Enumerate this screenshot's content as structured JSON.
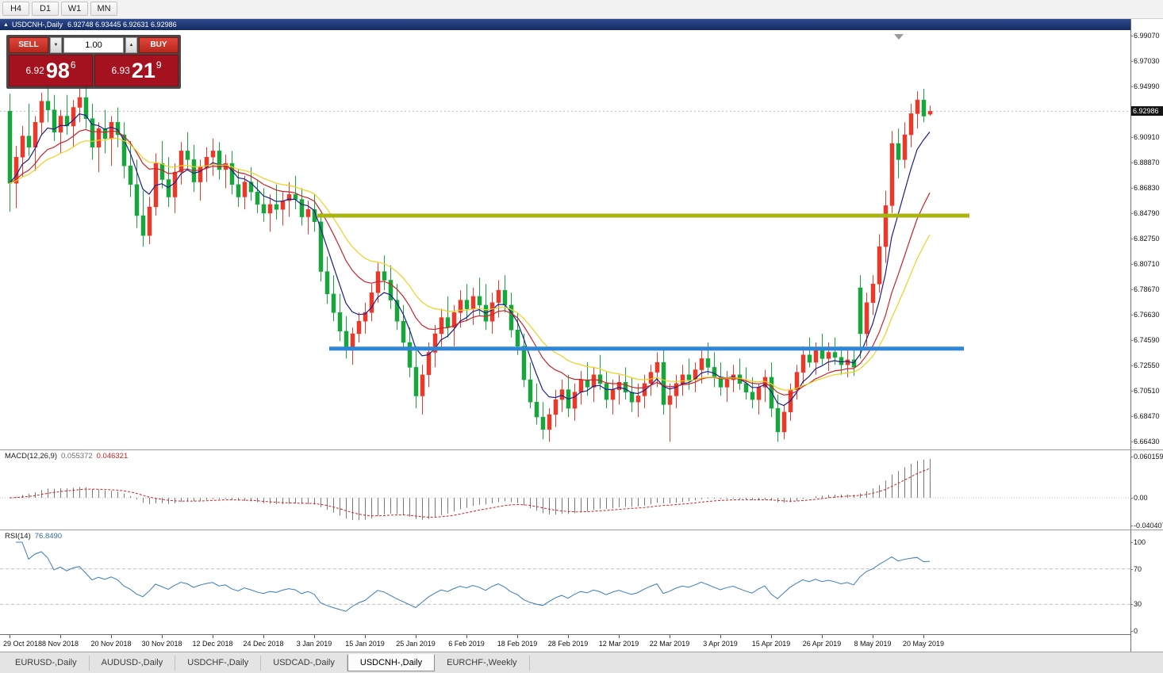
{
  "toolbar": {
    "timeframes": [
      "H4",
      "D1",
      "W1",
      "MN"
    ]
  },
  "chart_window": {
    "title": "USDCNH-,Daily",
    "ohlc_text": "6.92748 6.93445 6.92631 6.92986",
    "current_price": "6.92986",
    "trade_panel": {
      "sell_label": "SELL",
      "buy_label": "BUY",
      "volume": "1.00",
      "volume_down_icon": "▼",
      "volume_up_icon": "▲",
      "sell_price": {
        "prefix": "6.92",
        "big": "98",
        "sup": "6"
      },
      "buy_price": {
        "prefix": "6.93",
        "big": "21",
        "sup": "9"
      }
    }
  },
  "price_axis": {
    "labels": [
      "6.99070",
      "6.97030",
      "6.94990",
      "6.90910",
      "6.88870",
      "6.86830",
      "6.84790",
      "6.82750",
      "6.80710",
      "6.78670",
      "6.76630",
      "6.74590",
      "6.72550",
      "6.70510",
      "6.68470",
      "6.66430"
    ]
  },
  "macd_panel": {
    "name": "MACD(12,26,9)",
    "value": "0.055372",
    "signal_value": "0.046321",
    "axis_labels": [
      "0.060159",
      "0.00",
      "-0.040407"
    ]
  },
  "rsi_panel": {
    "name": "RSI(14)",
    "value": "76.8490",
    "axis_labels": [
      "100",
      "70",
      "30",
      "0"
    ]
  },
  "date_axis": {
    "labels": [
      "29 Oct 2018",
      "8 Nov 2018",
      "20 Nov 2018",
      "30 Nov 2018",
      "12 Dec 2018",
      "24 Dec 2018",
      "3 Jan 2019",
      "15 Jan 2019",
      "25 Jan 2019",
      "6 Feb 2019",
      "18 Feb 2019",
      "28 Feb 2019",
      "12 Mar 2019",
      "22 Mar 2019",
      "3 Apr 2019",
      "15 Apr 2019",
      "26 Apr 2019",
      "8 May 2019",
      "20 May 2019"
    ]
  },
  "tabs": [
    {
      "label": "EURUSD-,Daily",
      "active": false
    },
    {
      "label": "AUDUSD-,Daily",
      "active": false
    },
    {
      "label": "USDCHF-,Daily",
      "active": false
    },
    {
      "label": "USDCAD-,Daily",
      "active": false
    },
    {
      "label": "USDCNH-,Daily",
      "active": true
    },
    {
      "label": "EURCHF-,Weekly",
      "active": false
    }
  ],
  "chart_data": {
    "type": "candlestick",
    "symbol": "USDCNH",
    "timeframe": "Daily",
    "ohlc_current": {
      "open": 6.92748,
      "high": 6.93445,
      "low": 6.92631,
      "close": 6.92986
    },
    "ylim": [
      6.6643,
      6.9907
    ],
    "x_label_step": 8,
    "candles": [
      [
        6.93,
        6.944,
        6.849,
        6.872
      ],
      [
        6.872,
        6.902,
        6.852,
        6.893
      ],
      [
        6.893,
        6.918,
        6.877,
        6.91
      ],
      [
        6.91,
        6.936,
        6.894,
        6.901
      ],
      [
        6.901,
        6.926,
        6.882,
        6.921
      ],
      [
        6.921,
        6.945,
        6.911,
        6.938
      ],
      [
        6.938,
        6.949,
        6.921,
        6.931
      ],
      [
        6.931,
        6.943,
        6.906,
        6.913
      ],
      [
        6.913,
        6.931,
        6.896,
        6.926
      ],
      [
        6.926,
        6.943,
        6.911,
        6.918
      ],
      [
        6.918,
        6.939,
        6.901,
        6.933
      ],
      [
        6.933,
        6.948,
        6.921,
        6.941
      ],
      [
        6.941,
        6.951,
        6.916,
        6.924
      ],
      [
        6.924,
        6.936,
        6.891,
        6.901
      ],
      [
        6.901,
        6.921,
        6.881,
        6.916
      ],
      [
        6.916,
        6.931,
        6.896,
        6.908
      ],
      [
        6.908,
        6.926,
        6.886,
        6.921
      ],
      [
        6.921,
        6.933,
        6.901,
        6.911
      ],
      [
        6.911,
        6.921,
        6.876,
        6.886
      ],
      [
        6.886,
        6.906,
        6.861,
        6.871
      ],
      [
        6.871,
        6.891,
        6.836,
        6.846
      ],
      [
        6.846,
        6.866,
        6.821,
        6.83
      ],
      [
        6.83,
        6.861,
        6.823,
        6.853
      ],
      [
        6.853,
        6.896,
        6.846,
        6.888
      ],
      [
        6.888,
        6.906,
        6.868,
        6.875
      ],
      [
        6.875,
        6.893,
        6.853,
        6.861
      ],
      [
        6.861,
        6.888,
        6.848,
        6.881
      ],
      [
        6.881,
        6.905,
        6.871,
        6.898
      ],
      [
        6.898,
        6.913,
        6.883,
        6.891
      ],
      [
        6.891,
        6.903,
        6.865,
        6.873
      ],
      [
        6.873,
        6.891,
        6.858,
        6.885
      ],
      [
        6.885,
        6.901,
        6.873,
        6.893
      ],
      [
        6.893,
        6.908,
        6.878,
        6.898
      ],
      [
        6.898,
        6.905,
        6.875,
        6.883
      ],
      [
        6.883,
        6.895,
        6.868,
        6.888
      ],
      [
        6.888,
        6.898,
        6.863,
        6.871
      ],
      [
        6.871,
        6.883,
        6.853,
        6.861
      ],
      [
        6.861,
        6.878,
        6.851,
        6.873
      ],
      [
        6.873,
        6.885,
        6.858,
        6.865
      ],
      [
        6.865,
        6.875,
        6.848,
        6.855
      ],
      [
        6.855,
        6.868,
        6.841,
        6.848
      ],
      [
        6.848,
        6.863,
        6.833,
        6.855
      ],
      [
        6.855,
        6.871,
        6.843,
        6.851
      ],
      [
        6.851,
        6.865,
        6.838,
        6.858
      ],
      [
        6.858,
        6.873,
        6.845,
        6.863
      ],
      [
        6.863,
        6.878,
        6.851,
        6.859
      ],
      [
        6.859,
        6.868,
        6.838,
        6.845
      ],
      [
        6.845,
        6.858,
        6.831,
        6.851
      ],
      [
        6.851,
        6.863,
        6.833,
        6.841
      ],
      [
        6.841,
        6.848,
        6.793,
        6.801
      ],
      [
        6.801,
        6.813,
        6.775,
        6.783
      ],
      [
        6.783,
        6.798,
        6.761,
        6.768
      ],
      [
        6.768,
        6.783,
        6.745,
        6.753
      ],
      [
        6.753,
        6.765,
        6.731,
        6.738
      ],
      [
        6.738,
        6.756,
        6.726,
        6.751
      ],
      [
        6.751,
        6.768,
        6.744,
        6.761
      ],
      [
        6.761,
        6.776,
        6.751,
        6.768
      ],
      [
        6.768,
        6.791,
        6.761,
        6.784
      ],
      [
        6.784,
        6.808,
        6.776,
        6.801
      ],
      [
        6.801,
        6.814,
        6.786,
        6.794
      ],
      [
        6.794,
        6.806,
        6.771,
        6.778
      ],
      [
        6.778,
        6.791,
        6.754,
        6.761
      ],
      [
        6.761,
        6.774,
        6.738,
        6.744
      ],
      [
        6.744,
        6.756,
        6.716,
        6.724
      ],
      [
        6.724,
        6.741,
        6.691,
        6.701
      ],
      [
        6.701,
        6.726,
        6.686,
        6.718
      ],
      [
        6.718,
        6.744,
        6.708,
        6.736
      ],
      [
        6.736,
        6.758,
        6.724,
        6.751
      ],
      [
        6.751,
        6.771,
        6.738,
        6.764
      ],
      [
        6.764,
        6.781,
        6.748,
        6.756
      ],
      [
        6.756,
        6.774,
        6.741,
        6.768
      ],
      [
        6.768,
        6.786,
        6.756,
        6.778
      ],
      [
        6.778,
        6.791,
        6.761,
        6.771
      ],
      [
        6.771,
        6.788,
        6.758,
        6.781
      ],
      [
        6.781,
        6.796,
        6.766,
        6.774
      ],
      [
        6.774,
        6.791,
        6.754,
        6.761
      ],
      [
        6.761,
        6.784,
        6.751,
        6.776
      ],
      [
        6.776,
        6.794,
        6.764,
        6.786
      ],
      [
        6.786,
        6.798,
        6.768,
        6.774
      ],
      [
        6.774,
        6.784,
        6.748,
        6.754
      ],
      [
        6.754,
        6.768,
        6.734,
        6.741
      ],
      [
        6.741,
        6.751,
        6.708,
        6.714
      ],
      [
        6.714,
        6.728,
        6.691,
        6.696
      ],
      [
        6.696,
        6.711,
        6.678,
        6.684
      ],
      [
        6.684,
        6.696,
        6.666,
        6.674
      ],
      [
        6.674,
        6.691,
        6.664,
        6.686
      ],
      [
        6.686,
        6.706,
        6.676,
        6.698
      ],
      [
        6.698,
        6.714,
        6.688,
        6.706
      ],
      [
        6.706,
        6.718,
        6.684,
        6.691
      ],
      [
        6.691,
        6.711,
        6.681,
        6.704
      ],
      [
        6.704,
        6.721,
        6.694,
        6.714
      ],
      [
        6.714,
        6.728,
        6.701,
        6.708
      ],
      [
        6.708,
        6.724,
        6.696,
        6.718
      ],
      [
        6.718,
        6.734,
        6.706,
        6.711
      ],
      [
        6.711,
        6.721,
        6.691,
        6.698
      ],
      [
        6.698,
        6.714,
        6.686,
        6.706
      ],
      [
        6.706,
        6.718,
        6.694,
        6.712
      ],
      [
        6.712,
        6.724,
        6.698,
        6.704
      ],
      [
        6.704,
        6.716,
        6.688,
        6.696
      ],
      [
        6.696,
        6.711,
        6.684,
        6.701
      ],
      [
        6.701,
        6.718,
        6.691,
        6.711
      ],
      [
        6.711,
        6.726,
        6.701,
        6.72
      ],
      [
        6.72,
        6.736,
        6.708,
        6.728
      ],
      [
        6.728,
        6.738,
        6.686,
        6.694
      ],
      [
        6.694,
        6.711,
        6.664,
        6.701
      ],
      [
        6.701,
        6.718,
        6.691,
        6.711
      ],
      [
        6.711,
        6.726,
        6.701,
        6.718
      ],
      [
        6.718,
        6.731,
        6.706,
        6.714
      ],
      [
        6.714,
        6.728,
        6.704,
        6.722
      ],
      [
        6.722,
        6.738,
        6.711,
        6.731
      ],
      [
        6.731,
        6.744,
        6.718,
        6.724
      ],
      [
        6.724,
        6.736,
        6.708,
        6.716
      ],
      [
        6.716,
        6.728,
        6.701,
        6.708
      ],
      [
        6.708,
        6.721,
        6.696,
        6.714
      ],
      [
        6.714,
        6.726,
        6.704,
        6.718
      ],
      [
        6.718,
        6.731,
        6.706,
        6.711
      ],
      [
        6.711,
        6.724,
        6.698,
        6.704
      ],
      [
        6.704,
        6.716,
        6.691,
        6.698
      ],
      [
        6.698,
        6.711,
        6.686,
        6.708
      ],
      [
        6.708,
        6.722,
        6.696,
        6.716
      ],
      [
        6.716,
        6.728,
        6.684,
        6.691
      ],
      [
        6.691,
        6.702,
        6.664,
        6.672
      ],
      [
        6.672,
        6.694,
        6.666,
        6.688
      ],
      [
        6.688,
        6.711,
        6.681,
        6.706
      ],
      [
        6.706,
        6.726,
        6.698,
        6.72
      ],
      [
        6.72,
        6.741,
        6.711,
        6.734
      ],
      [
        6.734,
        6.748,
        6.724,
        6.728
      ],
      [
        6.728,
        6.744,
        6.718,
        6.738
      ],
      [
        6.738,
        6.751,
        6.726,
        6.731
      ],
      [
        6.731,
        6.744,
        6.721,
        6.736
      ],
      [
        6.736,
        6.748,
        6.726,
        6.732
      ],
      [
        6.732,
        6.741,
        6.718,
        6.726
      ],
      [
        6.726,
        6.738,
        6.716,
        6.73
      ],
      [
        6.73,
        6.739,
        6.717,
        6.724
      ],
      [
        6.788,
        6.798,
        6.731,
        6.751
      ],
      [
        6.751,
        6.784,
        6.741,
        6.776
      ],
      [
        6.776,
        6.798,
        6.766,
        6.791
      ],
      [
        6.791,
        6.831,
        6.784,
        6.821
      ],
      [
        6.821,
        6.866,
        6.808,
        6.854
      ],
      [
        6.854,
        6.914,
        6.848,
        6.904
      ],
      [
        6.904,
        6.916,
        6.876,
        6.891
      ],
      [
        6.891,
        6.921,
        6.884,
        6.911
      ],
      [
        6.911,
        6.936,
        6.901,
        6.928
      ],
      [
        6.928,
        6.946,
        6.916,
        6.939
      ],
      [
        6.939,
        6.948,
        6.921,
        6.926
      ],
      [
        6.92748,
        6.93445,
        6.92631,
        6.92986
      ]
    ],
    "hlines": [
      {
        "name": "resistance-line",
        "price": 6.846,
        "color": "#a8b40f"
      },
      {
        "name": "support-line",
        "price": 6.739,
        "color": "#2f86d6"
      }
    ],
    "moving_averages": [
      {
        "period": 6,
        "color": "#1c1f8a"
      },
      {
        "period": 14,
        "color": "#cc2229"
      },
      {
        "period": 22,
        "color": "#f0d01f"
      }
    ],
    "macd": {
      "fast": 12,
      "slow": 26,
      "signal": 9,
      "value": 0.055372,
      "signal_value": 0.046321,
      "axis": [
        0.060159,
        0,
        -0.040407
      ]
    },
    "rsi": {
      "period": 14,
      "value": 76.849,
      "levels": [
        70,
        30
      ]
    },
    "colors": {
      "up": "#e8392b",
      "down": "#16a63c",
      "macd_main": "#7a7a7a",
      "macd_signal": "#cc2229",
      "rsi_line": "#3b7bbf",
      "bid_line": "#bdbdbd"
    }
  }
}
